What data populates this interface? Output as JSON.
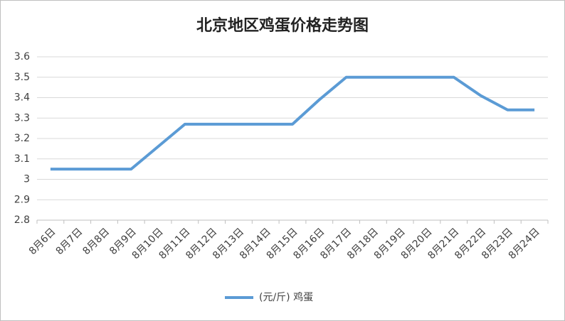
{
  "chart_data": {
    "type": "line",
    "title": "北京地区鸡蛋价格走势图",
    "categories": [
      "8月6日",
      "8月7日",
      "8月8日",
      "8月9日",
      "8月10日",
      "8月11日",
      "8月12日",
      "8月13日",
      "8月14日",
      "8月15日",
      "8月16日",
      "8月17日",
      "8月18日",
      "8月19日",
      "8月20日",
      "8月21日",
      "8月22日",
      "8月23日",
      "8月24日"
    ],
    "series": [
      {
        "name": "(元/斤) 鸡蛋",
        "color": "#5b9bd5",
        "values": [
          3.05,
          3.05,
          3.05,
          3.05,
          3.16,
          3.27,
          3.27,
          3.27,
          3.27,
          3.27,
          3.39,
          3.5,
          3.5,
          3.5,
          3.5,
          3.5,
          3.41,
          3.34,
          3.34
        ]
      }
    ],
    "ylim": [
      2.8,
      3.6
    ],
    "yticks": [
      2.8,
      2.9,
      3,
      3.1,
      3.2,
      3.3,
      3.4,
      3.5,
      3.6
    ],
    "grid": true,
    "legend": "bottom"
  }
}
